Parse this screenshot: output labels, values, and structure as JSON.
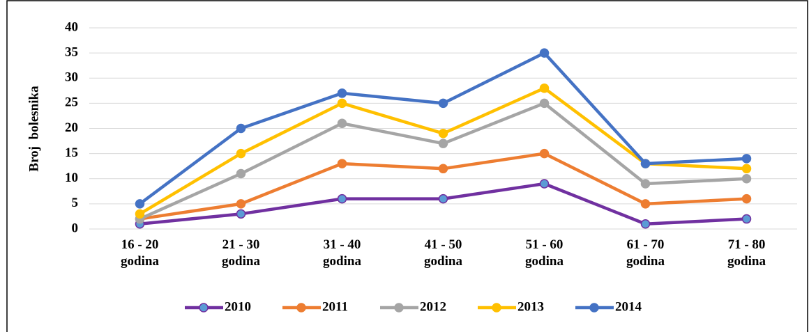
{
  "chart_data": {
    "type": "line",
    "y_label": "Broj  bolesnika",
    "categories": [
      "16 - 20 godina",
      "21 - 30 godina",
      "31 - 40 godina",
      "41 - 50 godina",
      "51 - 60 godina",
      "61 - 70 godina",
      "71 - 80 godina"
    ],
    "series": [
      {
        "name": "2010",
        "color": "#7030a0",
        "marker_color": "#5b9bd5",
        "values": [
          1,
          3,
          6,
          6,
          9,
          1,
          2
        ]
      },
      {
        "name": "2011",
        "color": "#ed7d31",
        "values": [
          2,
          5,
          13,
          12,
          15,
          5,
          6
        ]
      },
      {
        "name": "2012",
        "color": "#a5a5a5",
        "values": [
          2,
          11,
          21,
          17,
          25,
          9,
          10
        ]
      },
      {
        "name": "2013",
        "color": "#ffc000",
        "values": [
          3,
          15,
          25,
          19,
          28,
          13,
          12
        ]
      },
      {
        "name": "2014",
        "color": "#4472c4",
        "values": [
          5,
          20,
          27,
          25,
          35,
          13,
          14
        ]
      }
    ],
    "ylim": [
      0,
      40
    ],
    "yticks": [
      0,
      5,
      10,
      15,
      20,
      25,
      30,
      35,
      40
    ],
    "grid": true,
    "legend": "bottom"
  }
}
